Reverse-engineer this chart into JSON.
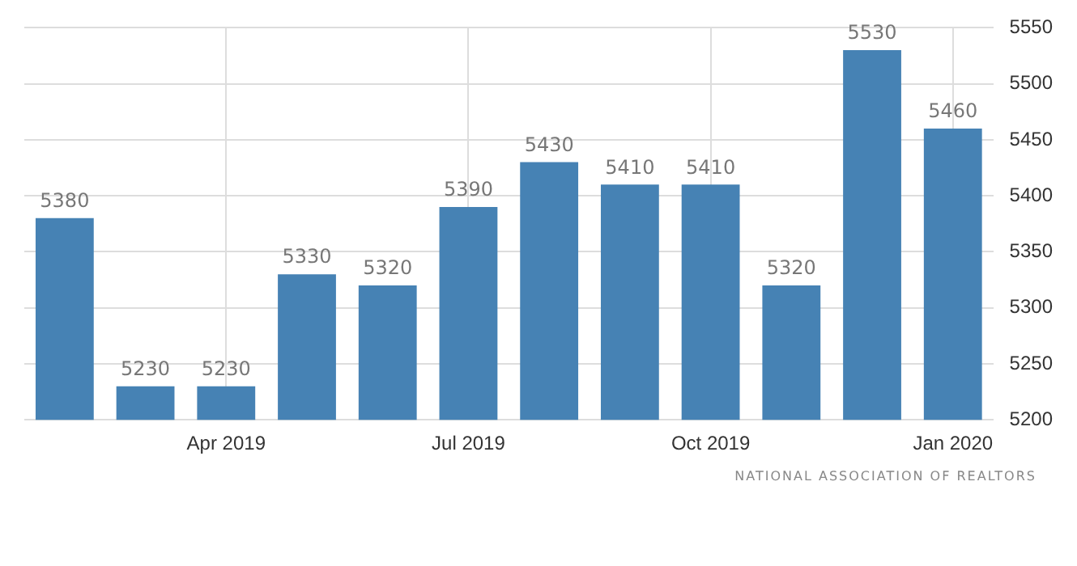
{
  "chart_data": {
    "type": "bar",
    "categories": [
      null,
      null,
      "Apr 2019",
      null,
      null,
      "Jul 2019",
      null,
      null,
      "Oct 2019",
      null,
      null,
      "Jan 2020"
    ],
    "values": [
      5380,
      5230,
      5230,
      5330,
      5320,
      5390,
      5430,
      5410,
      5410,
      5320,
      5530,
      5460
    ],
    "color": "#4682b4",
    "ylim": [
      5200,
      5550
    ],
    "yticks": [
      5200,
      5250,
      5300,
      5350,
      5400,
      5450,
      5500,
      5550
    ],
    "grid": true,
    "data_labels": true,
    "legend": false,
    "annotations": [
      "NATIONAL ASSOCIATION OF REALTORS"
    ]
  }
}
